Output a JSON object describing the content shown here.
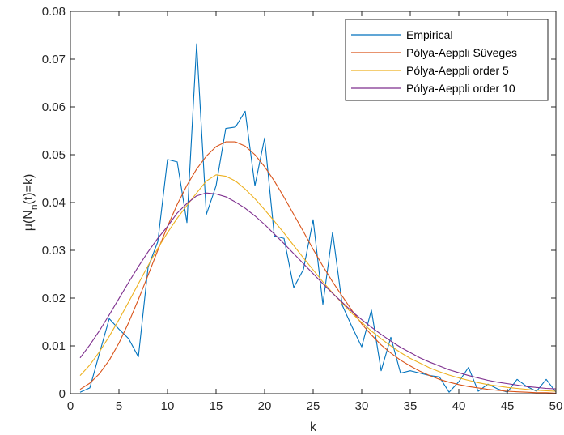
{
  "chart_data": {
    "type": "line",
    "xlabel": "k",
    "ylabel_parts": [
      "μ(N",
      "n",
      "(t)=k)"
    ],
    "xlim": [
      0,
      50
    ],
    "ylim": [
      0,
      0.08
    ],
    "xticks": [
      "0",
      "5",
      "10",
      "15",
      "20",
      "25",
      "30",
      "35",
      "40",
      "45",
      "50"
    ],
    "yticks": [
      "0",
      "0.01",
      "0.02",
      "0.03",
      "0.04",
      "0.05",
      "0.06",
      "0.07",
      "0.08"
    ],
    "grid": false,
    "legend_position": "top-right",
    "series": [
      {
        "name": "Empirical",
        "color": "#0072BD",
        "x": [
          1,
          2,
          3,
          4,
          5,
          6,
          7,
          8,
          9,
          10,
          11,
          12,
          13,
          14,
          15,
          16,
          17,
          18,
          19,
          20,
          21,
          22,
          23,
          24,
          25,
          26,
          27,
          28,
          29,
          30,
          31,
          32,
          33,
          34,
          35,
          36,
          37,
          38,
          39,
          40,
          41,
          42,
          43,
          44,
          45,
          46,
          47,
          48,
          49,
          50
        ],
        "y": [
          0.0003,
          0.0012,
          0.0085,
          0.0157,
          0.0135,
          0.0115,
          0.0077,
          0.0265,
          0.0318,
          0.049,
          0.0485,
          0.0358,
          0.0732,
          0.0375,
          0.0435,
          0.0555,
          0.0558,
          0.0591,
          0.0435,
          0.0535,
          0.033,
          0.0325,
          0.0222,
          0.026,
          0.0364,
          0.0187,
          0.0338,
          0.0185,
          0.014,
          0.0098,
          0.0175,
          0.0048,
          0.0118,
          0.0043,
          0.0048,
          0.0043,
          0.0038,
          0.0035,
          0.0003,
          0.0025,
          0.0055,
          0.0005,
          0.002,
          0.001,
          0.0003,
          0.003,
          0.0015,
          0.0005,
          0.003,
          0.0003
        ]
      },
      {
        "name": "Pólya-Aeppli Süveges",
        "color": "#D95319",
        "x": [
          1,
          2,
          3,
          4,
          5,
          6,
          7,
          8,
          9,
          10,
          11,
          12,
          13,
          14,
          15,
          16,
          17,
          18,
          19,
          20,
          21,
          22,
          23,
          24,
          25,
          26,
          27,
          28,
          29,
          30,
          31,
          32,
          33,
          34,
          35,
          36,
          37,
          38,
          39,
          40,
          41,
          42,
          43,
          44,
          45,
          46,
          47,
          48,
          49,
          50
        ],
        "y": [
          0.0009,
          0.0022,
          0.0042,
          0.007,
          0.0106,
          0.0149,
          0.0197,
          0.0248,
          0.03,
          0.035,
          0.0396,
          0.0436,
          0.047,
          0.0497,
          0.0517,
          0.0527,
          0.0527,
          0.0518,
          0.05,
          0.0475,
          0.0445,
          0.0411,
          0.0375,
          0.0339,
          0.0302,
          0.0267,
          0.0234,
          0.0204,
          0.0174,
          0.0146,
          0.0123,
          0.0102,
          0.0085,
          0.007,
          0.0058,
          0.0047,
          0.0038,
          0.003,
          0.0024,
          0.0019,
          0.0015,
          0.0012,
          0.0009,
          0.0007,
          0.0005,
          0.0004,
          0.0003,
          0.0002,
          0.0002,
          0.0001
        ]
      },
      {
        "name": "Pólya-Aeppli order 5",
        "color": "#EDB120",
        "x": [
          1,
          2,
          3,
          4,
          5,
          6,
          7,
          8,
          9,
          10,
          11,
          12,
          13,
          14,
          15,
          16,
          17,
          18,
          19,
          20,
          21,
          22,
          23,
          24,
          25,
          26,
          27,
          28,
          29,
          30,
          31,
          32,
          33,
          34,
          35,
          36,
          37,
          38,
          39,
          40,
          41,
          42,
          43,
          44,
          45,
          46,
          47,
          48,
          49,
          50
        ],
        "y": [
          0.0038,
          0.006,
          0.0088,
          0.012,
          0.0155,
          0.0192,
          0.023,
          0.0268,
          0.0304,
          0.0337,
          0.0367,
          0.0394,
          0.042,
          0.0445,
          0.0458,
          0.0455,
          0.0445,
          0.0428,
          0.0408,
          0.0385,
          0.0361,
          0.0336,
          0.031,
          0.0284,
          0.0259,
          0.0234,
          0.0211,
          0.0189,
          0.0168,
          0.0149,
          0.0131,
          0.0115,
          0.01,
          0.0086,
          0.0074,
          0.0064,
          0.0054,
          0.0046,
          0.0039,
          0.0033,
          0.0028,
          0.0023,
          0.0019,
          0.0016,
          0.0013,
          0.0011,
          0.0009,
          0.0007,
          0.0006,
          0.0005
        ]
      },
      {
        "name": "Pólya-Aeppli order 10",
        "color": "#7E2F8E",
        "x": [
          1,
          2,
          3,
          4,
          5,
          6,
          7,
          8,
          9,
          10,
          11,
          12,
          13,
          14,
          15,
          16,
          17,
          18,
          19,
          20,
          21,
          22,
          23,
          24,
          25,
          26,
          27,
          28,
          29,
          30,
          31,
          32,
          33,
          34,
          35,
          36,
          37,
          38,
          39,
          40,
          41,
          42,
          43,
          44,
          45,
          46,
          47,
          48,
          49,
          50
        ],
        "y": [
          0.0075,
          0.0102,
          0.0132,
          0.0165,
          0.0199,
          0.0233,
          0.0266,
          0.0297,
          0.0325,
          0.035,
          0.0378,
          0.0398,
          0.0414,
          0.042,
          0.0418,
          0.0412,
          0.0401,
          0.0388,
          0.0372,
          0.0354,
          0.0334,
          0.0314,
          0.0293,
          0.0272,
          0.0251,
          0.023,
          0.021,
          0.0191,
          0.0172,
          0.0155,
          0.0139,
          0.0124,
          0.011,
          0.0097,
          0.0086,
          0.0075,
          0.0066,
          0.0058,
          0.005,
          0.0044,
          0.0038,
          0.0033,
          0.0028,
          0.0024,
          0.0021,
          0.0018,
          0.0015,
          0.0013,
          0.0011,
          0.001
        ]
      }
    ]
  }
}
